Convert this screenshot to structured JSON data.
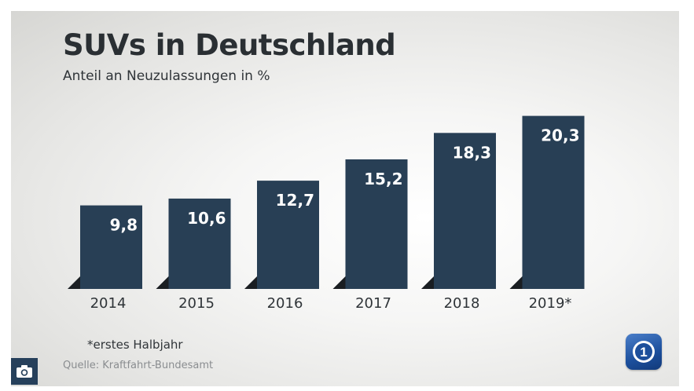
{
  "chart_data": {
    "type": "bar",
    "title": "SUVs in Deutschland",
    "subtitle": "Anteil an Neuzulassungen in %",
    "categories": [
      "2014",
      "2015",
      "2016",
      "2017",
      "2018",
      "2019*"
    ],
    "values": [
      9.8,
      10.6,
      12.7,
      15.2,
      18.3,
      20.3
    ],
    "value_labels": [
      "9,8",
      "10,6",
      "12,7",
      "15,2",
      "18,3",
      "20,3"
    ],
    "xlabel": "",
    "ylabel": "",
    "ylim": [
      0,
      21
    ],
    "grid": false,
    "legend": "none",
    "footnote": "*erstes Halbjahr",
    "source": "Quelle: Kraftfahrt-Bundesamt"
  },
  "colors": {
    "bar": "#283f55",
    "bar_shadow": "#1a1e22",
    "value_text": "#ffffff",
    "tick_text": "#2f3438"
  },
  "icons": {
    "camera": "camera-icon",
    "broadcaster_logo": "das-erste-logo-icon"
  }
}
